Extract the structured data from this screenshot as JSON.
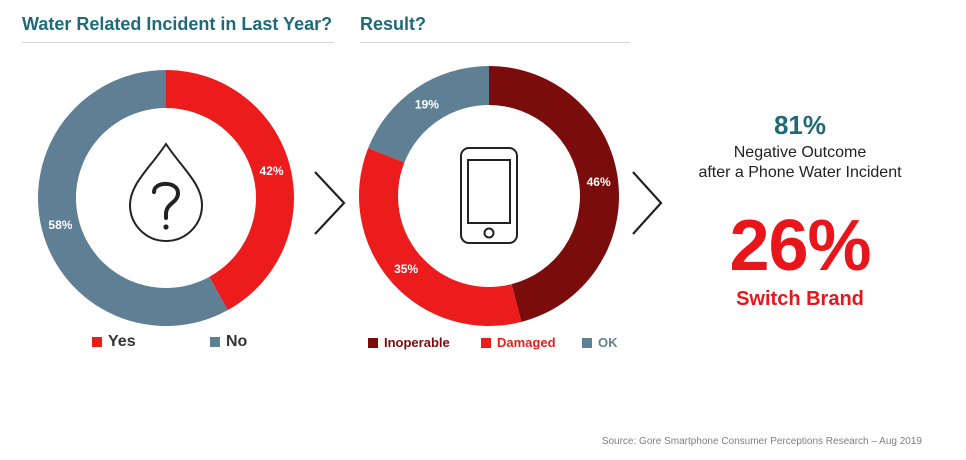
{
  "colors": {
    "yes": "#ec1c1c",
    "no": "#5f7f94",
    "inoperable": "#7a0c0c",
    "damaged": "#ec1c1c",
    "ok": "#5f7f94",
    "heading": "#1f6a78",
    "accent": "#e8161a"
  },
  "chart_data": [
    {
      "type": "pie",
      "title": "Water Related Incident in Last Year?",
      "categories": [
        "Yes",
        "No"
      ],
      "values": [
        42,
        58
      ],
      "labels": [
        "42%",
        "58%"
      ],
      "center_icon": "water-drop-question-icon"
    },
    {
      "type": "pie",
      "title": "Result?",
      "categories": [
        "Inoperable",
        "Damaged",
        "OK"
      ],
      "values": [
        46,
        35,
        19
      ],
      "labels": [
        "46%",
        "35%",
        "19%"
      ],
      "center_icon": "smartphone-icon"
    }
  ],
  "summary": {
    "negative_pct": "81%",
    "negative_line1": "Negative Outcome",
    "negative_line2": "after a Phone Water Incident",
    "switch_pct": "26%",
    "switch_label": "Switch Brand"
  },
  "source": "Source: Gore Smartphone Consumer Perceptions Research – Aug 2019"
}
